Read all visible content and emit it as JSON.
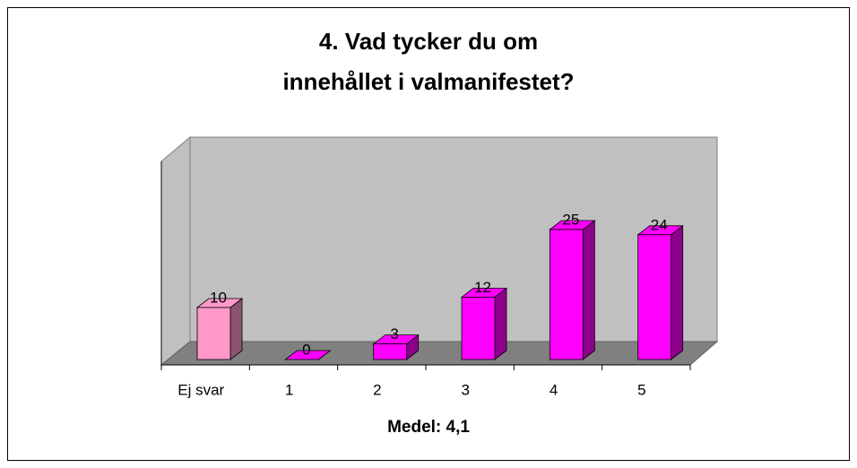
{
  "chart_data": {
    "type": "bar3d",
    "title": [
      "4. Vad tycker du om",
      "innehållet i valmanifestet?"
    ],
    "x_label": "Medel: 4,1",
    "categories": [
      "Ej svar",
      "1",
      "2",
      "3",
      "4",
      "5"
    ],
    "values": [
      10,
      0,
      3,
      12,
      25,
      24
    ],
    "colors": [
      "#ff99cc",
      "#ff00ff",
      "#ff00ff",
      "#ff00ff",
      "#ff00ff",
      "#ff00ff"
    ]
  }
}
